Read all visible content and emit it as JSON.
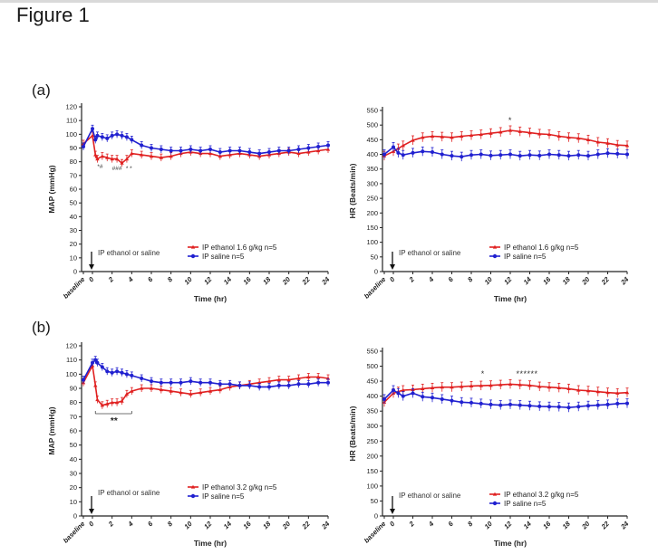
{
  "figure_title": "Figure 1",
  "panel_labels": [
    "(a)",
    "(b)"
  ],
  "chart_data": [
    {
      "type": "line",
      "panel": "(a)",
      "ylabel": "MAP (mmHg)",
      "xlabel": "Time (hr)",
      "ylim": [
        0,
        120
      ],
      "yticks": [
        0,
        10,
        20,
        30,
        40,
        50,
        60,
        70,
        80,
        90,
        100,
        110,
        120
      ],
      "xticks": [
        "baseline",
        "0",
        "2",
        "4",
        "6",
        "8",
        "10",
        "12",
        "14",
        "16",
        "18",
        "20",
        "22",
        "24"
      ],
      "annotation": "IP ethanol or saline",
      "significance_marks": [
        "*#",
        "###",
        "* *"
      ],
      "series": [
        {
          "name": "IP ethanol 1.6 g/kg  n=5",
          "color": "#e02020",
          "x": [
            -1,
            0,
            0.3,
            0.5,
            1,
            1.5,
            2,
            2.5,
            3,
            3.5,
            4,
            5,
            6,
            7,
            8,
            9,
            10,
            11,
            12,
            13,
            14,
            15,
            16,
            17,
            18,
            19,
            20,
            21,
            22,
            23,
            24
          ],
          "y": [
            93,
            99,
            85,
            82,
            84,
            83,
            82,
            82,
            79,
            82,
            86,
            85,
            84,
            83,
            84,
            86,
            87,
            86,
            86,
            84,
            85,
            86,
            85,
            84,
            85,
            86,
            87,
            86,
            87,
            88,
            89
          ]
        },
        {
          "name": "IP saline n=5",
          "color": "#2020d0",
          "x": [
            -1,
            0,
            0.3,
            0.5,
            1,
            1.5,
            2,
            2.5,
            3,
            3.5,
            4,
            5,
            6,
            7,
            8,
            9,
            10,
            11,
            12,
            13,
            14,
            15,
            16,
            17,
            18,
            19,
            20,
            21,
            22,
            23,
            24
          ],
          "y": [
            91,
            104,
            96,
            99,
            98,
            97,
            99,
            100,
            99,
            98,
            96,
            92,
            90,
            89,
            88,
            88,
            89,
            88,
            89,
            87,
            88,
            88,
            87,
            86,
            87,
            88,
            88,
            89,
            90,
            91,
            92
          ]
        }
      ]
    },
    {
      "type": "line",
      "panel": "(a)",
      "ylabel": "HR (Beats/min)",
      "xlabel": "Time (hr)",
      "ylim": [
        0,
        550
      ],
      "yticks": [
        0,
        50,
        100,
        150,
        200,
        250,
        300,
        350,
        400,
        450,
        500,
        550
      ],
      "xticks": [
        "baseline",
        "0",
        "2",
        "4",
        "6",
        "8",
        "10",
        "12",
        "14",
        "16",
        "18",
        "20",
        "22",
        "24"
      ],
      "annotation": "IP ethanol or saline",
      "significance_marks": [
        "*"
      ],
      "series": [
        {
          "name": "IP ethanol 1.6 g/kg  n=5",
          "color": "#e02020",
          "x": [
            -1,
            0,
            0.5,
            1,
            2,
            3,
            4,
            5,
            6,
            7,
            8,
            9,
            10,
            11,
            12,
            13,
            14,
            15,
            16,
            17,
            18,
            19,
            20,
            21,
            22,
            23,
            24
          ],
          "y": [
            395,
            410,
            420,
            430,
            448,
            458,
            462,
            460,
            458,
            462,
            465,
            468,
            472,
            476,
            482,
            478,
            474,
            470,
            468,
            462,
            458,
            455,
            450,
            442,
            438,
            432,
            430
          ]
        },
        {
          "name": "IP saline n=5",
          "color": "#2020d0",
          "x": [
            -1,
            0,
            0.5,
            1,
            2,
            3,
            4,
            5,
            6,
            7,
            8,
            9,
            10,
            11,
            12,
            13,
            14,
            15,
            16,
            17,
            18,
            19,
            20,
            21,
            22,
            23,
            24
          ],
          "y": [
            400,
            425,
            405,
            398,
            405,
            410,
            408,
            400,
            395,
            392,
            398,
            400,
            396,
            398,
            400,
            395,
            398,
            396,
            400,
            398,
            395,
            398,
            395,
            400,
            404,
            402,
            400
          ]
        }
      ]
    },
    {
      "type": "line",
      "panel": "(b)",
      "ylabel": "MAP (mmHg)",
      "xlabel": "Time (hr)",
      "ylim": [
        0,
        120
      ],
      "yticks": [
        0,
        10,
        20,
        30,
        40,
        50,
        60,
        70,
        80,
        90,
        100,
        110,
        120
      ],
      "xticks": [
        "baseline",
        "0",
        "2",
        "4",
        "6",
        "8",
        "10",
        "12",
        "14",
        "16",
        "18",
        "20",
        "22",
        "24"
      ],
      "annotation": "IP ethanol or saline",
      "significance_marks": [
        "**"
      ],
      "series": [
        {
          "name": "IP ethanol 3.2 g/kg  n=5",
          "color": "#e02020",
          "x": [
            -1,
            0,
            0.3,
            0.5,
            1,
            1.5,
            2,
            2.5,
            3,
            3.5,
            4,
            5,
            6,
            7,
            8,
            9,
            10,
            11,
            12,
            13,
            14,
            15,
            16,
            17,
            18,
            19,
            20,
            21,
            22,
            23,
            24
          ],
          "y": [
            94,
            106,
            92,
            82,
            78,
            79,
            80,
            80,
            81,
            86,
            88,
            90,
            90,
            89,
            88,
            87,
            86,
            87,
            88,
            89,
            91,
            92,
            93,
            94,
            95,
            96,
            96,
            97,
            98,
            98,
            97
          ]
        },
        {
          "name": "IP saline n=5",
          "color": "#2020d0",
          "x": [
            -1,
            0,
            0.3,
            0.5,
            1,
            1.5,
            2,
            2.5,
            3,
            3.5,
            4,
            5,
            6,
            7,
            8,
            9,
            10,
            11,
            12,
            13,
            14,
            15,
            16,
            17,
            18,
            19,
            20,
            21,
            22,
            23,
            24
          ],
          "y": [
            96,
            108,
            110,
            108,
            105,
            102,
            101,
            102,
            101,
            100,
            99,
            97,
            95,
            94,
            94,
            94,
            95,
            94,
            94,
            93,
            93,
            92,
            92,
            91,
            91,
            92,
            92,
            93,
            93,
            94,
            94
          ]
        }
      ]
    },
    {
      "type": "line",
      "panel": "(b)",
      "ylabel": "HR (Beats/min)",
      "xlabel": "Time (hr)",
      "ylim": [
        0,
        550
      ],
      "yticks": [
        0,
        50,
        100,
        150,
        200,
        250,
        300,
        350,
        400,
        450,
        500,
        550
      ],
      "xticks": [
        "baseline",
        "0",
        "2",
        "4",
        "6",
        "8",
        "10",
        "12",
        "14",
        "16",
        "18",
        "20",
        "22",
        "24"
      ],
      "annotation": "IP ethanol or saline",
      "significance_marks": [
        "*",
        "******"
      ],
      "series": [
        {
          "name": "IP ethanol 3.2 g/kg  n=5",
          "color": "#e02020",
          "x": [
            -1,
            0,
            0.5,
            1,
            2,
            3,
            4,
            5,
            6,
            7,
            8,
            9,
            10,
            11,
            12,
            13,
            14,
            15,
            16,
            17,
            18,
            19,
            20,
            21,
            22,
            23,
            24
          ],
          "y": [
            380,
            410,
            415,
            420,
            422,
            425,
            428,
            430,
            430,
            432,
            434,
            435,
            436,
            438,
            440,
            438,
            436,
            432,
            430,
            428,
            425,
            420,
            418,
            415,
            412,
            410,
            412
          ]
        },
        {
          "name": "IP saline n=5",
          "color": "#2020d0",
          "x": [
            -1,
            0,
            0.5,
            1,
            2,
            3,
            4,
            5,
            6,
            7,
            8,
            9,
            10,
            11,
            12,
            13,
            14,
            15,
            16,
            17,
            18,
            19,
            20,
            21,
            22,
            23,
            24
          ],
          "y": [
            390,
            420,
            410,
            400,
            410,
            398,
            395,
            390,
            385,
            380,
            378,
            375,
            372,
            370,
            372,
            370,
            368,
            366,
            365,
            364,
            362,
            365,
            368,
            370,
            372,
            375,
            376
          ]
        }
      ]
    }
  ]
}
